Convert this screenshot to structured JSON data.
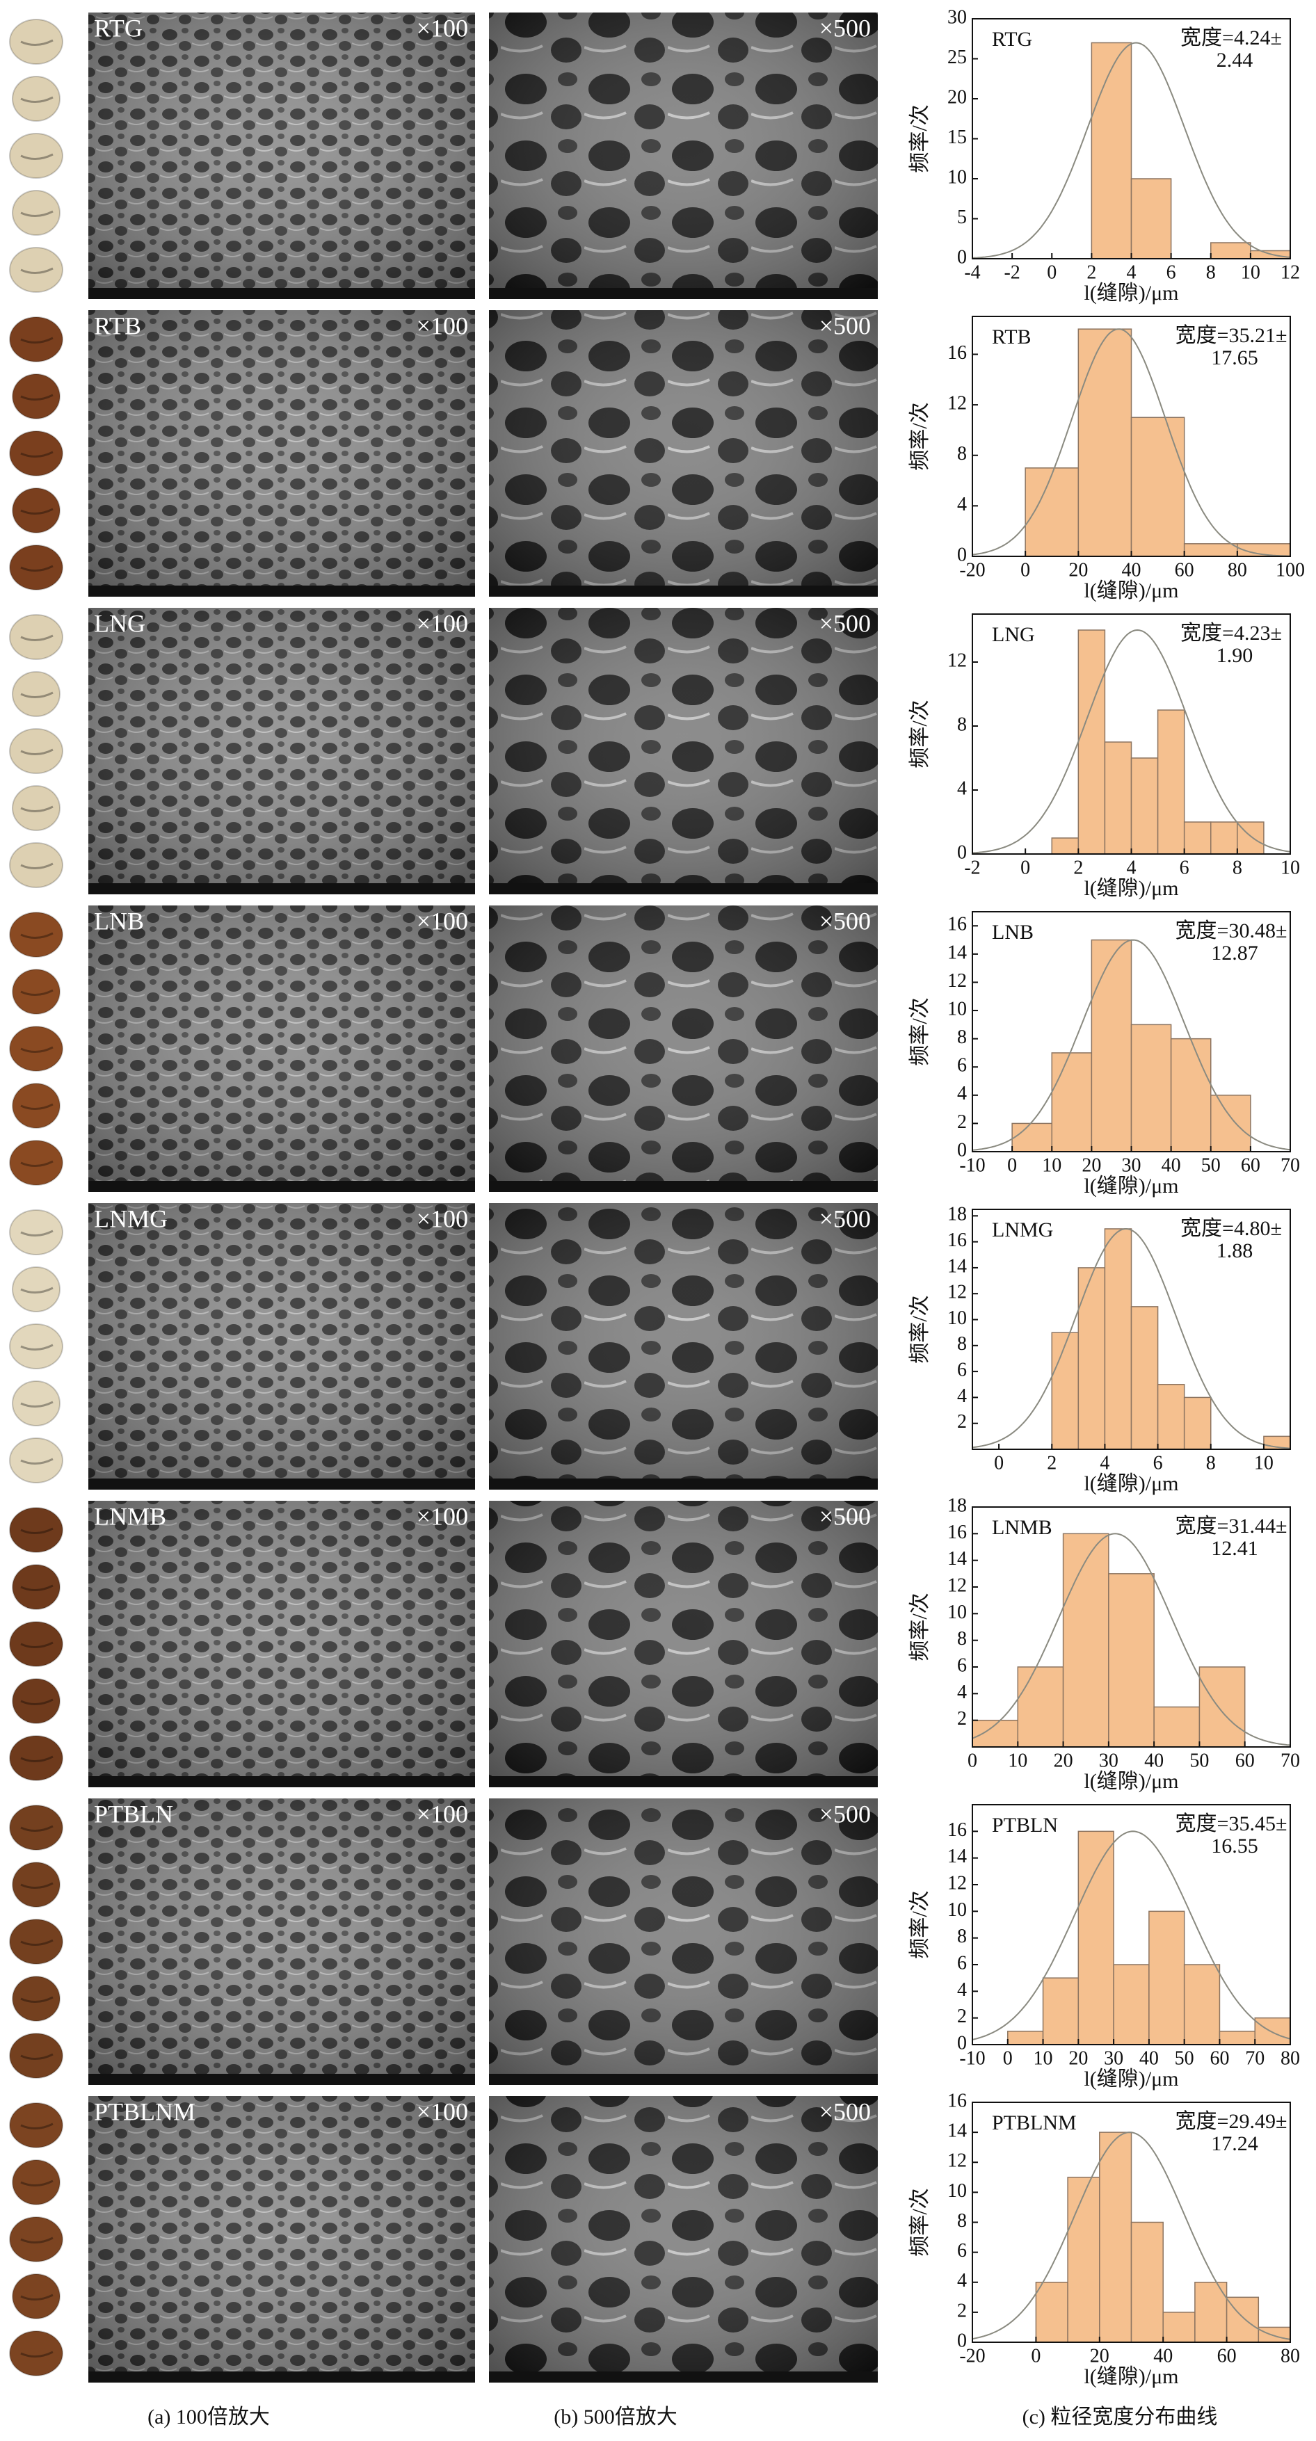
{
  "panels": [
    {
      "name": "RTG",
      "mag_low": "×100",
      "mag_high": "×500",
      "bean_color": "#ddd0b2"
    },
    {
      "name": "RTB",
      "mag_low": "×100",
      "mag_high": "×500",
      "bean_color": "#7a3f1e"
    },
    {
      "name": "LNG",
      "mag_low": "×100",
      "mag_high": "×500",
      "bean_color": "#ddd0b2"
    },
    {
      "name": "LNB",
      "mag_low": "×100",
      "mag_high": "×500",
      "bean_color": "#8a4a22"
    },
    {
      "name": "LNMG",
      "mag_low": "×100",
      "mag_high": "×500",
      "bean_color": "#e2d7bc"
    },
    {
      "name": "LNMB",
      "mag_low": "×100",
      "mag_high": "×500",
      "bean_color": "#6e3a1c"
    },
    {
      "name": "PTBLN",
      "mag_low": "×100",
      "mag_high": "×500",
      "bean_color": "#74401f"
    },
    {
      "name": "PTBLNM",
      "mag_low": "×100",
      "mag_high": "×500",
      "bean_color": "#7c4421"
    }
  ],
  "captions": [
    "(a) 100倍放大",
    "(b) 500倍放大",
    "(c) 粒径宽度分布曲线"
  ],
  "chart_data": [
    {
      "type": "histogram",
      "title": "RTG",
      "annotation": [
        "宽度=4.24±",
        "2.44"
      ],
      "x_label": "l(缝隙)/μm",
      "y_label": "频率/次",
      "color": "#f5c08f",
      "edge_color": "#8c7460",
      "curve_color": "#8a8a80",
      "bins": [
        2,
        4,
        6,
        8,
        10,
        12
      ],
      "values": [
        27,
        10,
        0,
        2,
        1
      ],
      "xlim": [
        -4,
        12
      ],
      "xticks": [
        -4,
        -2,
        0,
        2,
        4,
        6,
        8,
        10,
        12
      ],
      "ylim": [
        0,
        30
      ],
      "yticks": [
        0,
        5,
        10,
        15,
        20,
        25,
        30
      ],
      "curve": {
        "mean": 4.24,
        "sd": 2.44,
        "peak": 27
      }
    },
    {
      "type": "histogram",
      "title": "RTB",
      "annotation": [
        "宽度=35.21±",
        "17.65"
      ],
      "x_label": "l(缝隙)/μm",
      "y_label": "频率/次",
      "color": "#f5c08f",
      "edge_color": "#8c7460",
      "curve_color": "#8a8a80",
      "bins": [
        0,
        20,
        40,
        60,
        80,
        100
      ],
      "values": [
        7,
        18,
        11,
        1,
        1
      ],
      "xlim": [
        -20,
        100
      ],
      "xticks": [
        -20,
        0,
        20,
        40,
        60,
        80,
        100
      ],
      "ylim": [
        0,
        19
      ],
      "yticks": [
        0,
        4,
        8,
        12,
        16
      ],
      "curve": {
        "mean": 35.21,
        "sd": 17.65,
        "peak": 18
      }
    },
    {
      "type": "histogram",
      "title": "LNG",
      "annotation": [
        "宽度=4.23±",
        "1.90"
      ],
      "x_label": "l(缝隙)/μm",
      "y_label": "频率/次",
      "color": "#f5c08f",
      "edge_color": "#8c7460",
      "curve_color": "#8a8a80",
      "bins": [
        1,
        2,
        3,
        4,
        5,
        6,
        7,
        8,
        9
      ],
      "values": [
        1,
        14,
        7,
        6,
        9,
        2,
        2,
        2
      ],
      "xlim": [
        -2,
        10
      ],
      "xticks": [
        -2,
        0,
        2,
        4,
        6,
        8,
        10
      ],
      "ylim": [
        0,
        15
      ],
      "yticks": [
        0,
        4,
        8,
        12
      ],
      "curve": {
        "mean": 4.23,
        "sd": 1.9,
        "peak": 14
      }
    },
    {
      "type": "histogram",
      "title": "LNB",
      "annotation": [
        "宽度=30.48±",
        "12.87"
      ],
      "x_label": "l(缝隙)/μm",
      "y_label": "频率/次",
      "color": "#f5c08f",
      "edge_color": "#8c7460",
      "curve_color": "#8a8a80",
      "bins": [
        0,
        10,
        20,
        30,
        40,
        50,
        60
      ],
      "values": [
        2,
        7,
        15,
        9,
        8,
        4
      ],
      "xlim": [
        -10,
        70
      ],
      "xticks": [
        -10,
        0,
        10,
        20,
        30,
        40,
        50,
        60,
        70
      ],
      "ylim": [
        0,
        17
      ],
      "yticks": [
        0,
        2,
        4,
        6,
        8,
        10,
        12,
        14,
        16
      ],
      "curve": {
        "mean": 30.48,
        "sd": 12.87,
        "peak": 15
      }
    },
    {
      "type": "histogram",
      "title": "LNMG",
      "annotation": [
        "宽度=4.80±",
        "1.88"
      ],
      "x_label": "l(缝隙)/μm",
      "y_label": "频率/次",
      "color": "#f5c08f",
      "edge_color": "#8c7460",
      "curve_color": "#8a8a80",
      "bins": [
        2,
        3,
        4,
        5,
        6,
        7,
        8,
        9,
        10,
        11
      ],
      "values": [
        9,
        14,
        17,
        11,
        5,
        4,
        0,
        0,
        1
      ],
      "xlim": [
        -1,
        11
      ],
      "xticks": [
        0,
        2,
        4,
        6,
        8,
        10
      ],
      "ylim": [
        0,
        18.5
      ],
      "yticks": [
        2,
        4,
        6,
        8,
        10,
        12,
        14,
        16,
        18
      ],
      "curve": {
        "mean": 4.8,
        "sd": 1.88,
        "peak": 17
      }
    },
    {
      "type": "histogram",
      "title": "LNMB",
      "annotation": [
        "宽度=31.44±",
        "12.41"
      ],
      "x_label": "l(缝隙)/μm",
      "y_label": "频率/次",
      "color": "#f5c08f",
      "edge_color": "#8c7460",
      "curve_color": "#8a8a80",
      "bins": [
        0,
        10,
        20,
        30,
        40,
        50,
        60
      ],
      "values": [
        2,
        6,
        16,
        13,
        3,
        6
      ],
      "xlim": [
        0,
        70
      ],
      "xticks": [
        0,
        10,
        20,
        30,
        40,
        50,
        60,
        70
      ],
      "ylim": [
        0,
        18
      ],
      "yticks": [
        2,
        4,
        6,
        8,
        10,
        12,
        14,
        16,
        18
      ],
      "curve": {
        "mean": 31.44,
        "sd": 12.41,
        "peak": 16
      }
    },
    {
      "type": "histogram",
      "title": "PTBLN",
      "annotation": [
        "宽度=35.45±",
        "16.55"
      ],
      "x_label": "l(缝隙)/μm",
      "y_label": "频率/次",
      "color": "#f5c08f",
      "edge_color": "#8c7460",
      "curve_color": "#8a8a80",
      "bins": [
        0,
        10,
        20,
        30,
        40,
        50,
        60,
        70,
        80
      ],
      "values": [
        1,
        5,
        16,
        6,
        10,
        6,
        1,
        2
      ],
      "xlim": [
        -10,
        80
      ],
      "xticks": [
        -10,
        0,
        10,
        20,
        30,
        40,
        50,
        60,
        70,
        80
      ],
      "ylim": [
        0,
        18
      ],
      "yticks": [
        0,
        2,
        4,
        6,
        8,
        10,
        12,
        14,
        16
      ],
      "curve": {
        "mean": 35.45,
        "sd": 16.55,
        "peak": 16
      }
    },
    {
      "type": "histogram",
      "title": "PTBLNM",
      "annotation": [
        "宽度=29.49±",
        "17.24"
      ],
      "x_label": "l(缝隙)/μm",
      "y_label": "频率/次",
      "color": "#f5c08f",
      "edge_color": "#8c7460",
      "curve_color": "#8a8a80",
      "bins": [
        0,
        10,
        20,
        30,
        40,
        50,
        60,
        70,
        80
      ],
      "values": [
        4,
        11,
        14,
        8,
        2,
        4,
        3,
        1
      ],
      "xlim": [
        -20,
        80
      ],
      "xticks": [
        -20,
        0,
        20,
        40,
        60,
        80
      ],
      "ylim": [
        0,
        16
      ],
      "yticks": [
        0,
        2,
        4,
        6,
        8,
        10,
        12,
        14,
        16
      ],
      "curve": {
        "mean": 29.49,
        "sd": 17.24,
        "peak": 14
      }
    }
  ]
}
